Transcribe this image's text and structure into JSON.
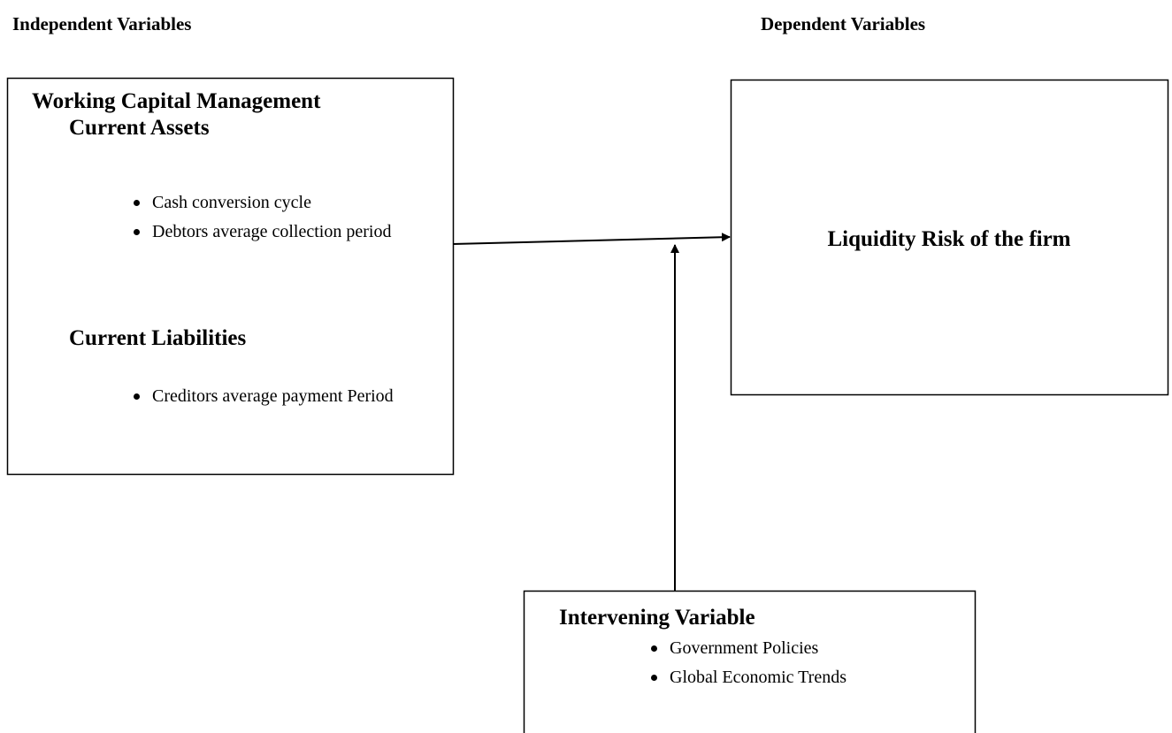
{
  "headings": {
    "independent": "Independent Variables",
    "dependent": "Dependent Variables"
  },
  "independent_box": {
    "title": "Working Capital Management",
    "sections": [
      {
        "title": "Current Assets",
        "items": [
          "Cash  conversion cycle",
          "Debtors average collection period"
        ]
      },
      {
        "title": "Current Liabilities",
        "items": [
          "Creditors average payment Period"
        ]
      }
    ]
  },
  "dependent_box": {
    "title": "Liquidity Risk of the firm"
  },
  "intervening_box": {
    "title": "Intervening Variable",
    "items": [
      "Government Policies",
      "Global Economic Trends"
    ]
  }
}
